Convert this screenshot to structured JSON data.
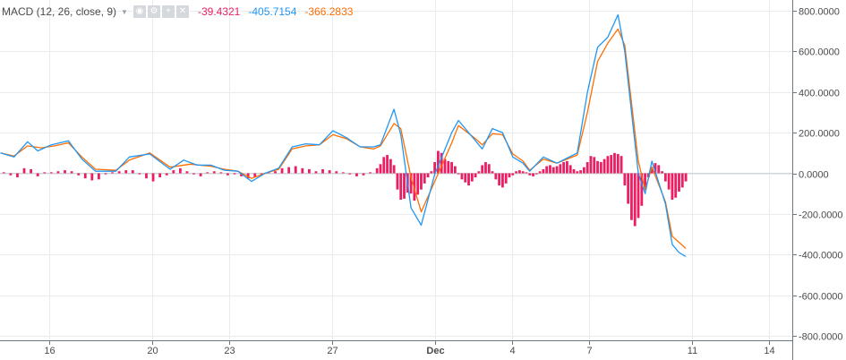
{
  "indicator": {
    "title": "MACD (12, 26, close, 9)",
    "controls": [
      "eye-icon",
      "gear-icon",
      "plus-icon",
      "close-icon"
    ],
    "values": {
      "histogram": "-39.4321",
      "macd": "-405.7154",
      "signal": "-366.2833"
    },
    "colors": {
      "histogram": "#e91e63",
      "macd": "#2196f3",
      "signal": "#ff6d00"
    }
  },
  "chart_data": {
    "type": "line",
    "title": "",
    "xlabel": "",
    "ylabel": "",
    "ylim": [
      -800,
      800
    ],
    "y_ticks": [
      "800.0000",
      "600.0000",
      "400.0000",
      "200.0000",
      "0.0000",
      "-200.0000",
      "-400.0000",
      "-600.0000",
      "-800.0000"
    ],
    "x_ticks": [
      {
        "label": "16",
        "t": 14.5
      },
      {
        "label": "20",
        "t": 44.8
      },
      {
        "label": "23",
        "t": 67.5
      },
      {
        "label": "27",
        "t": 97.8
      },
      {
        "label": "Dec",
        "t": 128.1,
        "bold": true
      },
      {
        "label": "4",
        "t": 150.9
      },
      {
        "label": "7",
        "t": 173.6
      },
      {
        "label": "11",
        "t": 203.9
      },
      {
        "label": "14",
        "t": 226.6
      }
    ],
    "grid": true,
    "series": [
      {
        "key": "macd",
        "color": "#2196f3",
        "points": [
          [
            0,
            100
          ],
          [
            4,
            80
          ],
          [
            8,
            155
          ],
          [
            11,
            110
          ],
          [
            15,
            140
          ],
          [
            20,
            160
          ],
          [
            24,
            70
          ],
          [
            28,
            10
          ],
          [
            34,
            10
          ],
          [
            38,
            80
          ],
          [
            44,
            95
          ],
          [
            50,
            20
          ],
          [
            54,
            65
          ],
          [
            58,
            40
          ],
          [
            62,
            40
          ],
          [
            66,
            15
          ],
          [
            70,
            10
          ],
          [
            74,
            -40
          ],
          [
            78,
            0
          ],
          [
            82,
            25
          ],
          [
            86,
            130
          ],
          [
            90,
            145
          ],
          [
            94,
            140
          ],
          [
            98,
            210
          ],
          [
            102,
            175
          ],
          [
            106,
            130
          ],
          [
            110,
            130
          ],
          [
            112,
            140
          ],
          [
            116,
            315
          ],
          [
            118,
            190
          ],
          [
            121,
            -170
          ],
          [
            124,
            -255
          ],
          [
            128,
            -5
          ],
          [
            133,
            200
          ],
          [
            135,
            260
          ],
          [
            140,
            160
          ],
          [
            142,
            120
          ],
          [
            145,
            220
          ],
          [
            148,
            200
          ],
          [
            151,
            80
          ],
          [
            154,
            50
          ],
          [
            156,
            10
          ],
          [
            160,
            80
          ],
          [
            164,
            50
          ],
          [
            170,
            100
          ],
          [
            173,
            400
          ],
          [
            176,
            620
          ],
          [
            179,
            670
          ],
          [
            182,
            780
          ],
          [
            184,
            600
          ],
          [
            188,
            0
          ],
          [
            190,
            -100
          ],
          [
            192,
            60
          ],
          [
            196,
            -150
          ],
          [
            198,
            -350
          ],
          [
            200,
            -390
          ],
          [
            202,
            -410
          ]
        ]
      },
      {
        "key": "signal",
        "color": "#ff6d00",
        "points": [
          [
            0,
            100
          ],
          [
            4,
            85
          ],
          [
            8,
            135
          ],
          [
            12,
            125
          ],
          [
            16,
            135
          ],
          [
            20,
            150
          ],
          [
            24,
            80
          ],
          [
            28,
            20
          ],
          [
            34,
            15
          ],
          [
            38,
            65
          ],
          [
            44,
            100
          ],
          [
            50,
            30
          ],
          [
            56,
            45
          ],
          [
            62,
            35
          ],
          [
            66,
            20
          ],
          [
            70,
            10
          ],
          [
            74,
            -25
          ],
          [
            78,
            0
          ],
          [
            82,
            20
          ],
          [
            86,
            120
          ],
          [
            90,
            135
          ],
          [
            94,
            140
          ],
          [
            98,
            190
          ],
          [
            102,
            170
          ],
          [
            106,
            130
          ],
          [
            110,
            120
          ],
          [
            112,
            135
          ],
          [
            116,
            245
          ],
          [
            118,
            220
          ],
          [
            121,
            -20
          ],
          [
            124,
            -190
          ],
          [
            128,
            -40
          ],
          [
            133,
            150
          ],
          [
            135,
            235
          ],
          [
            140,
            170
          ],
          [
            142,
            140
          ],
          [
            145,
            195
          ],
          [
            148,
            190
          ],
          [
            151,
            95
          ],
          [
            154,
            60
          ],
          [
            156,
            15
          ],
          [
            160,
            70
          ],
          [
            164,
            50
          ],
          [
            170,
            90
          ],
          [
            173,
            300
          ],
          [
            176,
            550
          ],
          [
            179,
            640
          ],
          [
            182,
            710
          ],
          [
            184,
            630
          ],
          [
            188,
            60
          ],
          [
            190,
            -80
          ],
          [
            192,
            30
          ],
          [
            196,
            -140
          ],
          [
            198,
            -310
          ],
          [
            200,
            -340
          ],
          [
            202,
            -370
          ]
        ]
      },
      {
        "key": "histogram",
        "type": "bar",
        "color": "#e91e63",
        "points": [
          [
            1,
            5
          ],
          [
            3,
            -10
          ],
          [
            5,
            -20
          ],
          [
            7,
            25
          ],
          [
            9,
            20
          ],
          [
            11,
            -15
          ],
          [
            13,
            5
          ],
          [
            15,
            5
          ],
          [
            17,
            10
          ],
          [
            19,
            15
          ],
          [
            21,
            10
          ],
          [
            23,
            -10
          ],
          [
            25,
            -25
          ],
          [
            27,
            -35
          ],
          [
            29,
            -30
          ],
          [
            31,
            -5
          ],
          [
            33,
            5
          ],
          [
            35,
            10
          ],
          [
            37,
            15
          ],
          [
            39,
            15
          ],
          [
            41,
            -5
          ],
          [
            43,
            -25
          ],
          [
            45,
            -40
          ],
          [
            47,
            -20
          ],
          [
            49,
            -10
          ],
          [
            51,
            15
          ],
          [
            53,
            25
          ],
          [
            55,
            10
          ],
          [
            57,
            -5
          ],
          [
            59,
            -15
          ],
          [
            61,
            5
          ],
          [
            63,
            10
          ],
          [
            65,
            5
          ],
          [
            67,
            -10
          ],
          [
            69,
            -5
          ],
          [
            71,
            -15
          ],
          [
            73,
            -25
          ],
          [
            75,
            -20
          ],
          [
            77,
            -10
          ],
          [
            79,
            5
          ],
          [
            81,
            10
          ],
          [
            83,
            25
          ],
          [
            85,
            30
          ],
          [
            87,
            35
          ],
          [
            89,
            25
          ],
          [
            91,
            20
          ],
          [
            93,
            10
          ],
          [
            95,
            20
          ],
          [
            97,
            15
          ],
          [
            99,
            10
          ],
          [
            101,
            5
          ],
          [
            103,
            -5
          ],
          [
            105,
            -15
          ],
          [
            107,
            -10
          ],
          [
            109,
            5
          ],
          [
            111,
            25
          ],
          [
            112,
            45
          ],
          [
            113,
            80
          ],
          [
            114,
            90
          ],
          [
            115,
            70
          ],
          [
            116,
            40
          ],
          [
            117,
            -80
          ],
          [
            118,
            -130
          ],
          [
            119,
            -125
          ],
          [
            120,
            -95
          ],
          [
            121,
            -100
          ],
          [
            122,
            -135
          ],
          [
            123,
            -105
          ],
          [
            124,
            -80
          ],
          [
            125,
            -50
          ],
          [
            126,
            -20
          ],
          [
            127,
            10
          ],
          [
            128,
            55
          ],
          [
            129,
            110
          ],
          [
            130,
            100
          ],
          [
            131,
            70
          ],
          [
            132,
            60
          ],
          [
            133,
            55
          ],
          [
            134,
            35
          ],
          [
            135,
            -5
          ],
          [
            136,
            -30
          ],
          [
            137,
            -45
          ],
          [
            138,
            -60
          ],
          [
            139,
            -40
          ],
          [
            140,
            -20
          ],
          [
            141,
            10
          ],
          [
            142,
            40
          ],
          [
            143,
            55
          ],
          [
            144,
            45
          ],
          [
            145,
            10
          ],
          [
            146,
            -30
          ],
          [
            147,
            -60
          ],
          [
            148,
            -70
          ],
          [
            149,
            -50
          ],
          [
            150,
            -20
          ],
          [
            151,
            -10
          ],
          [
            152,
            10
          ],
          [
            153,
            15
          ],
          [
            154,
            10
          ],
          [
            155,
            5
          ],
          [
            156,
            -10
          ],
          [
            157,
            -15
          ],
          [
            158,
            -5
          ],
          [
            159,
            10
          ],
          [
            160,
            20
          ],
          [
            161,
            35
          ],
          [
            162,
            40
          ],
          [
            163,
            30
          ],
          [
            164,
            35
          ],
          [
            165,
            45
          ],
          [
            166,
            55
          ],
          [
            167,
            60
          ],
          [
            168,
            40
          ],
          [
            169,
            20
          ],
          [
            170,
            10
          ],
          [
            171,
            15
          ],
          [
            172,
            30
          ],
          [
            173,
            55
          ],
          [
            174,
            85
          ],
          [
            175,
            80
          ],
          [
            176,
            60
          ],
          [
            177,
            55
          ],
          [
            178,
            70
          ],
          [
            179,
            85
          ],
          [
            180,
            90
          ],
          [
            181,
            100
          ],
          [
            182,
            95
          ],
          [
            183,
            85
          ],
          [
            184,
            -60
          ],
          [
            185,
            -150
          ],
          [
            186,
            -230
          ],
          [
            187,
            -260
          ],
          [
            188,
            -220
          ],
          [
            189,
            -160
          ],
          [
            190,
            -80
          ],
          [
            191,
            -20
          ],
          [
            192,
            30
          ],
          [
            193,
            50
          ],
          [
            194,
            40
          ],
          [
            195,
            10
          ],
          [
            196,
            -40
          ],
          [
            197,
            -80
          ],
          [
            198,
            -130
          ],
          [
            199,
            -120
          ],
          [
            200,
            -90
          ],
          [
            201,
            -70
          ],
          [
            202,
            -40
          ]
        ]
      }
    ]
  }
}
